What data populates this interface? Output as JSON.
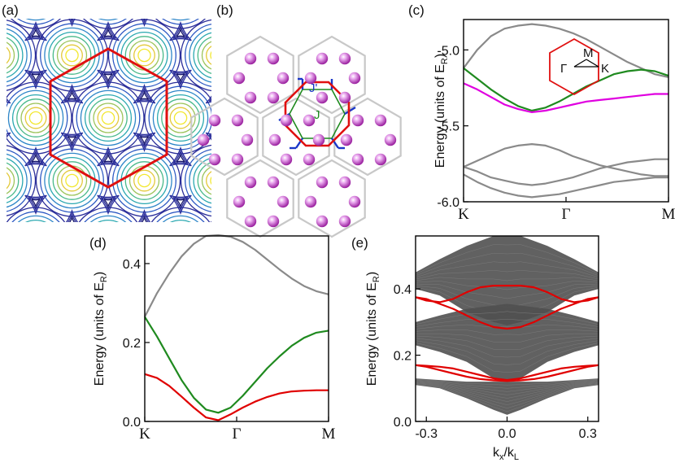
{
  "panel_labels": [
    "(a)",
    "(b)",
    "(c)",
    "(d)",
    "(e)"
  ],
  "panel_b": {
    "bond_labels": [
      "J'",
      "J"
    ]
  },
  "chart_data": [
    {
      "panel": "(c)",
      "type": "line",
      "xlabel": "",
      "ylabel_parts": [
        "Energy (units of E",
        "R",
        ")"
      ],
      "ylim": [
        -6.0,
        -4.8
      ],
      "yticks": [
        "-5.0",
        "-5.5",
        "-6.0"
      ],
      "ytick_values": [
        -5.0,
        -5.5,
        -6.0
      ],
      "xticks": [
        "K",
        "Γ",
        "M"
      ],
      "inset_labels": [
        "M",
        "Γ",
        "K"
      ],
      "x": [
        0,
        0.2,
        0.4,
        0.6,
        0.8,
        1.0,
        1.2,
        1.4,
        1.6,
        1.8,
        2.0,
        2.2,
        2.4,
        2.6,
        2.8,
        3.0
      ],
      "series": [
        {
          "color": "#8a8a8a",
          "values": [
            -5.12,
            -5.0,
            -4.91,
            -4.86,
            -4.84,
            -4.83,
            -4.84,
            -4.86,
            -4.89,
            -4.93,
            -4.98,
            -5.03,
            -5.08,
            -5.12,
            -5.16,
            -5.18
          ]
        },
        {
          "color": "#1f8a1f",
          "values": [
            -5.12,
            -5.19,
            -5.26,
            -5.32,
            -5.37,
            -5.4,
            -5.38,
            -5.34,
            -5.29,
            -5.24,
            -5.2,
            -5.16,
            -5.14,
            -5.13,
            -5.14,
            -5.17
          ]
        },
        {
          "color": "#e000e0",
          "values": [
            -5.22,
            -5.26,
            -5.31,
            -5.36,
            -5.39,
            -5.41,
            -5.4,
            -5.38,
            -5.36,
            -5.34,
            -5.33,
            -5.32,
            -5.31,
            -5.3,
            -5.29,
            -5.29
          ]
        },
        {
          "color": "#8a8a8a",
          "values": [
            -5.77,
            -5.73,
            -5.69,
            -5.65,
            -5.63,
            -5.62,
            -5.63,
            -5.66,
            -5.7,
            -5.73,
            -5.76,
            -5.78,
            -5.8,
            -5.82,
            -5.83,
            -5.83
          ]
        },
        {
          "color": "#8a8a8a",
          "values": [
            -5.77,
            -5.8,
            -5.84,
            -5.86,
            -5.88,
            -5.89,
            -5.88,
            -5.86,
            -5.84,
            -5.81,
            -5.78,
            -5.76,
            -5.74,
            -5.73,
            -5.72,
            -5.72
          ]
        },
        {
          "color": "#8a8a8a",
          "values": [
            -5.82,
            -5.87,
            -5.91,
            -5.94,
            -5.96,
            -5.97,
            -5.96,
            -5.95,
            -5.93,
            -5.91,
            -5.89,
            -5.87,
            -5.86,
            -5.85,
            -5.84,
            -5.84
          ]
        }
      ]
    },
    {
      "panel": "(d)",
      "type": "line",
      "xlabel": "",
      "ylabel_parts": [
        "Energy (units of E",
        "R",
        ")"
      ],
      "ylim": [
        0.0,
        0.47
      ],
      "yticks": [
        "0.4",
        "0.2",
        "0.0"
      ],
      "ytick_values": [
        0.4,
        0.2,
        0.0
      ],
      "xticks": [
        "K",
        "Γ",
        "M"
      ],
      "x": [
        0,
        0.2,
        0.4,
        0.6,
        0.8,
        1.0,
        1.2,
        1.4,
        1.6,
        1.8,
        2.0,
        2.2,
        2.4,
        2.6,
        2.8,
        3.0
      ],
      "series": [
        {
          "color": "#8a8a8a",
          "values": [
            0.265,
            0.325,
            0.375,
            0.418,
            0.45,
            0.47,
            0.472,
            0.468,
            0.455,
            0.435,
            0.41,
            0.385,
            0.362,
            0.343,
            0.33,
            0.322
          ]
        },
        {
          "color": "#1f8a1f",
          "values": [
            0.265,
            0.215,
            0.16,
            0.105,
            0.06,
            0.03,
            0.022,
            0.035,
            0.065,
            0.1,
            0.135,
            0.165,
            0.192,
            0.212,
            0.225,
            0.23
          ]
        },
        {
          "color": "#e00000",
          "values": [
            0.12,
            0.11,
            0.09,
            0.063,
            0.035,
            0.01,
            0.003,
            0.018,
            0.035,
            0.05,
            0.062,
            0.071,
            0.076,
            0.078,
            0.079,
            0.079
          ]
        }
      ]
    },
    {
      "panel": "(e)",
      "type": "line",
      "xlabel_parts": [
        "k",
        "x",
        "/k",
        "L"
      ],
      "ylabel_parts": [
        "Energy (units of E",
        "R",
        ")"
      ],
      "xlim": [
        -0.34,
        0.34
      ],
      "ylim": [
        0.0,
        0.56
      ],
      "xticks": [
        "-0.3",
        "0.0",
        "0.3"
      ],
      "xtick_values": [
        -0.3,
        0.0,
        0.3
      ],
      "yticks": [
        "0.4",
        "0.2",
        "0.0"
      ],
      "ytick_values": [
        0.4,
        0.2,
        0.0
      ],
      "bulk_bands": [
        {
          "color": "#505050",
          "x": [
            -0.34,
            -0.25,
            -0.15,
            -0.05,
            0.0,
            0.05,
            0.15,
            0.25,
            0.34
          ],
          "upper": [
            0.45,
            0.49,
            0.53,
            0.56,
            0.56,
            0.56,
            0.53,
            0.49,
            0.45
          ],
          "lower": [
            0.4,
            0.38,
            0.33,
            0.3,
            0.29,
            0.3,
            0.33,
            0.38,
            0.4
          ]
        },
        {
          "color": "#505050",
          "x": [
            -0.34,
            -0.25,
            -0.15,
            -0.05,
            0.0,
            0.05,
            0.15,
            0.25,
            0.34
          ],
          "upper": [
            0.3,
            0.32,
            0.34,
            0.35,
            0.355,
            0.35,
            0.34,
            0.32,
            0.3
          ],
          "lower": [
            0.23,
            0.21,
            0.18,
            0.13,
            0.125,
            0.13,
            0.18,
            0.21,
            0.23
          ]
        },
        {
          "color": "#505050",
          "x": [
            -0.34,
            -0.25,
            -0.15,
            -0.05,
            0.0,
            0.05,
            0.15,
            0.25,
            0.34
          ],
          "upper": [
            0.13,
            0.125,
            0.12,
            0.12,
            0.12,
            0.12,
            0.12,
            0.125,
            0.13
          ],
          "lower": [
            0.11,
            0.1,
            0.07,
            0.035,
            0.02,
            0.035,
            0.07,
            0.1,
            0.11
          ]
        }
      ],
      "series": [
        {
          "color": "#e00000",
          "x": [
            -0.34,
            -0.3,
            -0.25,
            -0.2,
            -0.15,
            -0.1,
            -0.05,
            0.0,
            0.05,
            0.1,
            0.15,
            0.2,
            0.25,
            0.3,
            0.34
          ],
          "values": [
            0.375,
            0.37,
            0.355,
            0.34,
            0.32,
            0.3,
            0.285,
            0.28,
            0.285,
            0.3,
            0.32,
            0.34,
            0.355,
            0.37,
            0.375
          ]
        },
        {
          "color": "#e00000",
          "x": [
            -0.34,
            -0.3,
            -0.25,
            -0.2,
            -0.15,
            -0.1,
            -0.05,
            0.0,
            0.05,
            0.1,
            0.15,
            0.2,
            0.25,
            0.3,
            0.34
          ],
          "values": [
            0.375,
            0.365,
            0.36,
            0.37,
            0.39,
            0.405,
            0.41,
            0.41,
            0.41,
            0.405,
            0.39,
            0.37,
            0.36,
            0.365,
            0.375
          ]
        },
        {
          "color": "#e00000",
          "x": [
            -0.34,
            -0.3,
            -0.25,
            -0.2,
            -0.15,
            -0.1,
            -0.05,
            0.0,
            0.05,
            0.1,
            0.15,
            0.2,
            0.25,
            0.3,
            0.34
          ],
          "values": [
            0.17,
            0.168,
            0.165,
            0.16,
            0.15,
            0.14,
            0.13,
            0.125,
            0.13,
            0.14,
            0.15,
            0.16,
            0.165,
            0.168,
            0.17
          ]
        },
        {
          "color": "#e00000",
          "x": [
            -0.34,
            -0.3,
            -0.25,
            -0.2,
            -0.15,
            -0.1,
            -0.05,
            0.0,
            0.05,
            0.1,
            0.15,
            0.2,
            0.25,
            0.3,
            0.34
          ],
          "values": [
            0.17,
            0.165,
            0.155,
            0.145,
            0.135,
            0.128,
            0.124,
            0.122,
            0.124,
            0.128,
            0.135,
            0.145,
            0.155,
            0.165,
            0.17
          ]
        }
      ]
    }
  ]
}
